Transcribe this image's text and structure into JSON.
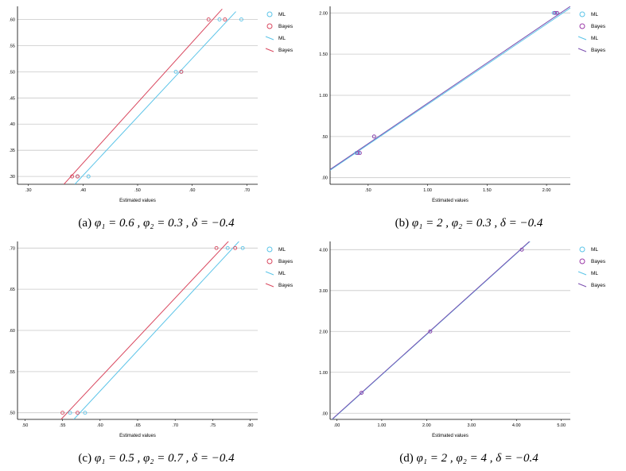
{
  "colors": {
    "ml": "#5bc4e8",
    "bayes": "#d9485f",
    "grid": "#c8c8c8",
    "axis": "#000000"
  },
  "panels": [
    {
      "caption": {
        "label": "(a)",
        "text": "φ₁ = 0.6 , φ₂ = 0.3 , δ = −0.4"
      },
      "legend": [
        "ML",
        "Bayes",
        "ML",
        "Bayes"
      ]
    },
    {
      "caption": {
        "label": "(b)",
        "text": "φ₁ = 2 , φ₂ = 0.3 , δ = −0.4"
      },
      "legend": [
        "ML",
        "Bayes",
        "ML",
        "Bayes"
      ]
    },
    {
      "caption": {
        "label": "(c)",
        "text": "φ₁ = 0.5 , φ₂ = 0.7 , δ = −0.4"
      },
      "legend": [
        "ML",
        "Bayes",
        "ML",
        "Bayes"
      ]
    },
    {
      "caption": {
        "label": "(d)",
        "text": "φ₁ = 2 , φ₂ = 4 , δ = −0.4"
      },
      "legend": [
        "ML",
        "Bayes",
        "ML",
        "Bayes"
      ]
    }
  ],
  "chart_data": [
    {
      "type": "scatter",
      "xlabel": "Estimated values",
      "ylabel": "",
      "xlim": [
        0.28,
        0.72
      ],
      "ylim": [
        0.285,
        0.625
      ],
      "xticks": [
        0.3,
        0.4,
        0.5,
        0.6,
        0.7
      ],
      "xticklabels": [
        ".30",
        ".40",
        ".50",
        ".60",
        ".70"
      ],
      "yticks": [
        0.3,
        0.35,
        0.4,
        0.45,
        0.5,
        0.55,
        0.6
      ],
      "yticklabels": [
        ".30",
        ".35",
        ".40",
        ".45",
        ".50",
        ".55",
        ".60"
      ],
      "grid": "horizontal",
      "legend_position": "right",
      "series": [
        {
          "name": "ML",
          "kind": "points",
          "color": "#5bc4e8",
          "x": [
            0.39,
            0.41,
            0.57,
            0.58,
            0.65,
            0.69
          ],
          "y": [
            0.3,
            0.3,
            0.5,
            0.5,
            0.6,
            0.6
          ]
        },
        {
          "name": "Bayes",
          "kind": "points",
          "color": "#d9485f",
          "x": [
            0.38,
            0.39,
            0.58,
            0.63,
            0.66
          ],
          "y": [
            0.3,
            0.3,
            0.5,
            0.6,
            0.6
          ]
        },
        {
          "name": "ML",
          "kind": "line",
          "color": "#5bc4e8",
          "x": [
            0.385,
            0.68
          ],
          "y": [
            0.285,
            0.615
          ]
        },
        {
          "name": "Bayes",
          "kind": "line",
          "color": "#d9485f",
          "x": [
            0.365,
            0.655
          ],
          "y": [
            0.285,
            0.62
          ]
        }
      ]
    },
    {
      "type": "scatter",
      "xlabel": "Estimated values",
      "ylabel": "",
      "xlim": [
        0.18,
        2.2
      ],
      "ylim": [
        -0.08,
        2.08
      ],
      "xticks": [
        0.5,
        1.0,
        1.5,
        2.0
      ],
      "xticklabels": [
        ".50",
        "1.00",
        "1.50",
        "2.00"
      ],
      "yticks": [
        0.0,
        0.5,
        1.0,
        1.5,
        2.0
      ],
      "yticklabels": [
        ".00",
        ".50",
        "1.00",
        "1.50",
        "2.00"
      ],
      "grid": "horizontal",
      "legend_position": "right",
      "series": [
        {
          "name": "ML",
          "kind": "points",
          "color": "#5bc4e8",
          "x": [
            0.4,
            0.42,
            0.55,
            2.06,
            2.08
          ],
          "y": [
            0.3,
            0.3,
            0.5,
            2.0,
            2.0
          ]
        },
        {
          "name": "Bayes",
          "kind": "points",
          "color": "#9b3aa8",
          "x": [
            0.41,
            0.43,
            0.55,
            2.07,
            2.09
          ],
          "y": [
            0.3,
            0.3,
            0.5,
            2.0,
            2.0
          ]
        },
        {
          "name": "ML",
          "kind": "line",
          "color": "#5bc4e8",
          "x": [
            0.18,
            2.2
          ],
          "y": [
            0.09,
            2.06
          ]
        },
        {
          "name": "Bayes",
          "kind": "line",
          "color": "#7b4fb0",
          "x": [
            0.18,
            2.2
          ],
          "y": [
            0.1,
            2.08
          ]
        }
      ]
    },
    {
      "type": "scatter",
      "xlabel": "Estimated values",
      "ylabel": "",
      "xlim": [
        0.49,
        0.81
      ],
      "ylim": [
        0.492,
        0.708
      ],
      "xticks": [
        0.5,
        0.55,
        0.6,
        0.65,
        0.7,
        0.75,
        0.8
      ],
      "xticklabels": [
        ".50",
        ".55",
        ".60",
        ".65",
        ".70",
        ".75",
        ".80"
      ],
      "yticks": [
        0.5,
        0.55,
        0.6,
        0.65,
        0.7
      ],
      "yticklabels": [
        ".50",
        ".55",
        ".60",
        ".65",
        ".70"
      ],
      "grid": "horizontal",
      "legend_position": "right",
      "series": [
        {
          "name": "ML",
          "kind": "points",
          "color": "#5bc4e8",
          "x": [
            0.56,
            0.58,
            0.77,
            0.79
          ],
          "y": [
            0.5,
            0.5,
            0.7,
            0.7
          ]
        },
        {
          "name": "Bayes",
          "kind": "points",
          "color": "#d9485f",
          "x": [
            0.55,
            0.57,
            0.755,
            0.78
          ],
          "y": [
            0.5,
            0.5,
            0.7,
            0.7
          ]
        },
        {
          "name": "ML",
          "kind": "line",
          "color": "#5bc4e8",
          "x": [
            0.565,
            0.785
          ],
          "y": [
            0.492,
            0.708
          ]
        },
        {
          "name": "Bayes",
          "kind": "line",
          "color": "#d9485f",
          "x": [
            0.548,
            0.775
          ],
          "y": [
            0.492,
            0.712
          ]
        }
      ]
    },
    {
      "type": "scatter",
      "xlabel": "Estimated values",
      "ylabel": "",
      "xlim": [
        -0.15,
        5.2
      ],
      "ylim": [
        -0.15,
        4.2
      ],
      "xticks": [
        0.0,
        1.0,
        2.0,
        3.0,
        4.0,
        5.0
      ],
      "xticklabels": [
        ".00",
        "1.00",
        "2.00",
        "3.00",
        "4.00",
        "5.00"
      ],
      "yticks": [
        0.0,
        1.0,
        2.0,
        3.0,
        4.0
      ],
      "yticklabels": [
        ".00",
        "1.00",
        "2.00",
        "3.00",
        "4.00"
      ],
      "grid": "horizontal",
      "legend_position": "right",
      "series": [
        {
          "name": "ML",
          "kind": "points",
          "color": "#5bc4e8",
          "x": [
            0.55,
            2.08,
            4.12
          ],
          "y": [
            0.5,
            2.0,
            4.0
          ]
        },
        {
          "name": "Bayes",
          "kind": "points",
          "color": "#9b3aa8",
          "x": [
            0.55,
            2.08,
            4.12
          ],
          "y": [
            0.5,
            2.0,
            4.0
          ]
        },
        {
          "name": "ML",
          "kind": "line",
          "color": "#5bc4e8",
          "x": [
            -0.1,
            4.35
          ],
          "y": [
            -0.15,
            4.25
          ]
        },
        {
          "name": "Bayes",
          "kind": "line",
          "color": "#7b4fb0",
          "x": [
            -0.1,
            4.35
          ],
          "y": [
            -0.14,
            4.26
          ]
        }
      ]
    }
  ]
}
